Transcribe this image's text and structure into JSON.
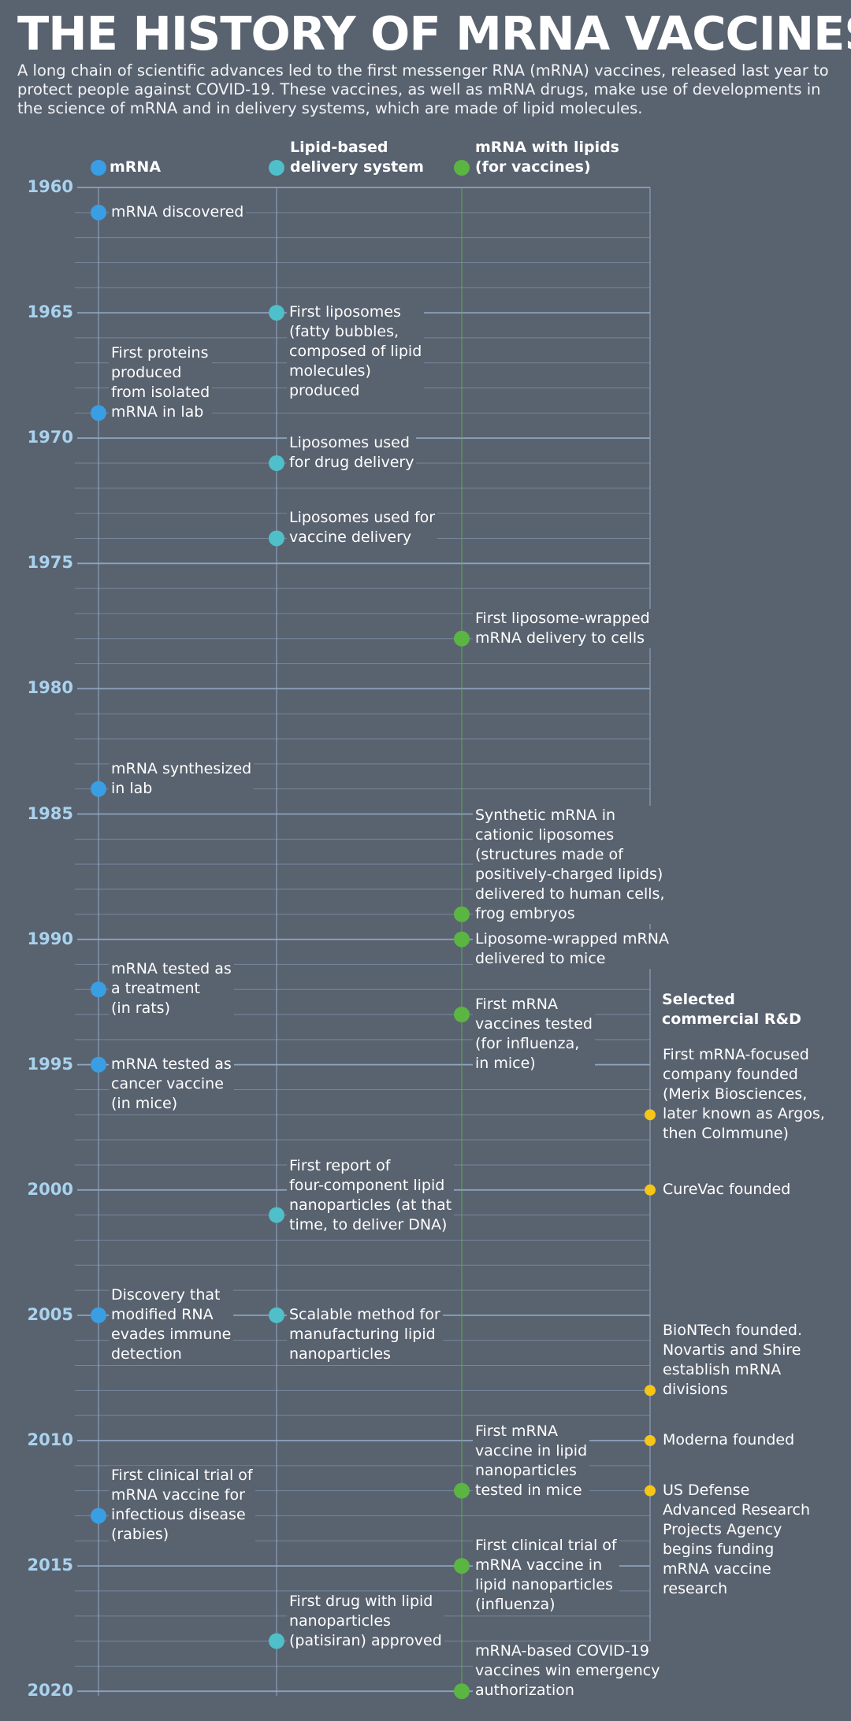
{
  "title": "THE HISTORY OF MRNA VACCINES",
  "subtitle": "A long chain of scientific advances led to the first messenger RNA (mRNA) vaccines, released last year to protect people against COVID-19. These vaccines, as well as mRNA drugs, make use of developments in the science of mRNA and in delivery systems, which are made of lipid molecules.",
  "colors": {
    "background": "#59626f",
    "grid": "#8fa6c2",
    "year": "#a9d2ee",
    "mrna": "#3a9ee4",
    "lipid": "#4fbfc9",
    "vaccine": "#5ab543",
    "commercial": "#f5c518"
  },
  "chart_data": {
    "type": "timeline",
    "y_axis": {
      "range": [
        1960,
        2020
      ],
      "tick_labels": [
        1960,
        1965,
        1970,
        1975,
        1980,
        1985,
        1990,
        1995,
        2000,
        2005,
        2010,
        2015,
        2020
      ]
    },
    "lanes": [
      {
        "id": "mrna",
        "label": "mRNA",
        "color": "#3a9ee4"
      },
      {
        "id": "lipid",
        "label": "Lipid-based\ndelivery system",
        "color": "#4fbfc9"
      },
      {
        "id": "vaccine",
        "label": "mRNA with lipids\n(for vaccines)",
        "color": "#5ab543"
      },
      {
        "id": "commercial",
        "label": "Selected\ncommercial R&D",
        "color": "#f5c518"
      }
    ],
    "events": [
      {
        "lane": "mrna",
        "year": 1961,
        "text": "mRNA discovered"
      },
      {
        "lane": "mrna",
        "year": 1969,
        "text": "First proteins\nproduced\nfrom isolated\nmRNA in lab"
      },
      {
        "lane": "mrna",
        "year": 1984,
        "text": "mRNA synthesized\nin lab"
      },
      {
        "lane": "mrna",
        "year": 1992,
        "text": "mRNA tested as\na treatment\n(in rats)"
      },
      {
        "lane": "mrna",
        "year": 1995,
        "text": "mRNA tested as\ncancer vaccine\n(in mice)"
      },
      {
        "lane": "mrna",
        "year": 2005,
        "text": "Discovery that\nmodified RNA\nevades immune\ndetection"
      },
      {
        "lane": "mrna",
        "year": 2013,
        "text": "First clinical trial of\nmRNA vaccine for\ninfectious disease\n(rabies)"
      },
      {
        "lane": "lipid",
        "year": 1965,
        "text": "First liposomes\n(fatty bubbles,\ncomposed of lipid\nmolecules)\nproduced"
      },
      {
        "lane": "lipid",
        "year": 1971,
        "text": "Liposomes used\nfor drug delivery"
      },
      {
        "lane": "lipid",
        "year": 1974,
        "text": "Liposomes used for\nvaccine delivery"
      },
      {
        "lane": "lipid",
        "year": 2001,
        "text": "First report of\nfour-component lipid\nnanoparticles (at that\ntime, to deliver DNA)"
      },
      {
        "lane": "lipid",
        "year": 2005,
        "text": "Scalable method for\nmanufacturing lipid\nnanoparticles"
      },
      {
        "lane": "lipid",
        "year": 2018,
        "text": "First drug with lipid\nnanoparticles\n(patisiran) approved"
      },
      {
        "lane": "vaccine",
        "year": 1978,
        "text": "First liposome-wrapped\nmRNA delivery to cells"
      },
      {
        "lane": "vaccine",
        "year": 1989,
        "text": "Synthetic mRNA in\ncationic liposomes\n(structures made of\npositively-charged lipids)\ndelivered to human cells,\nfrog embryos"
      },
      {
        "lane": "vaccine",
        "year": 1990,
        "text": "Liposome-wrapped mRNA\ndelivered to mice"
      },
      {
        "lane": "vaccine",
        "year": 1993,
        "text": "First mRNA\nvaccines tested\n(for influenza,\nin mice)"
      },
      {
        "lane": "vaccine",
        "year": 2012,
        "text": "First mRNA\nvaccine in lipid\nnanoparticles\ntested in mice"
      },
      {
        "lane": "vaccine",
        "year": 2015,
        "text": "First clinical trial of\nmRNA vaccine in\nlipid nanoparticles\n(influenza)"
      },
      {
        "lane": "vaccine",
        "year": 2020,
        "text": "mRNA-based COVID-19\nvaccines win emergency\nauthorization"
      },
      {
        "lane": "commercial",
        "year": 1997,
        "text": "First mRNA-focused\ncompany founded\n(Merix Biosciences,\nlater known as Argos,\nthen CoImmune)"
      },
      {
        "lane": "commercial",
        "year": 2000,
        "text": "CureVac founded"
      },
      {
        "lane": "commercial",
        "year": 2008,
        "text": "BioNTech founded.\nNovartis and Shire\nestablish mRNA\ndivisions"
      },
      {
        "lane": "commercial",
        "year": 2010,
        "text": "Moderna founded"
      },
      {
        "lane": "commercial",
        "year": 2012,
        "text": "US Defense\nAdvanced Research\nProjects Agency\nbegins funding\nmRNA vaccine\nresearch"
      }
    ]
  }
}
